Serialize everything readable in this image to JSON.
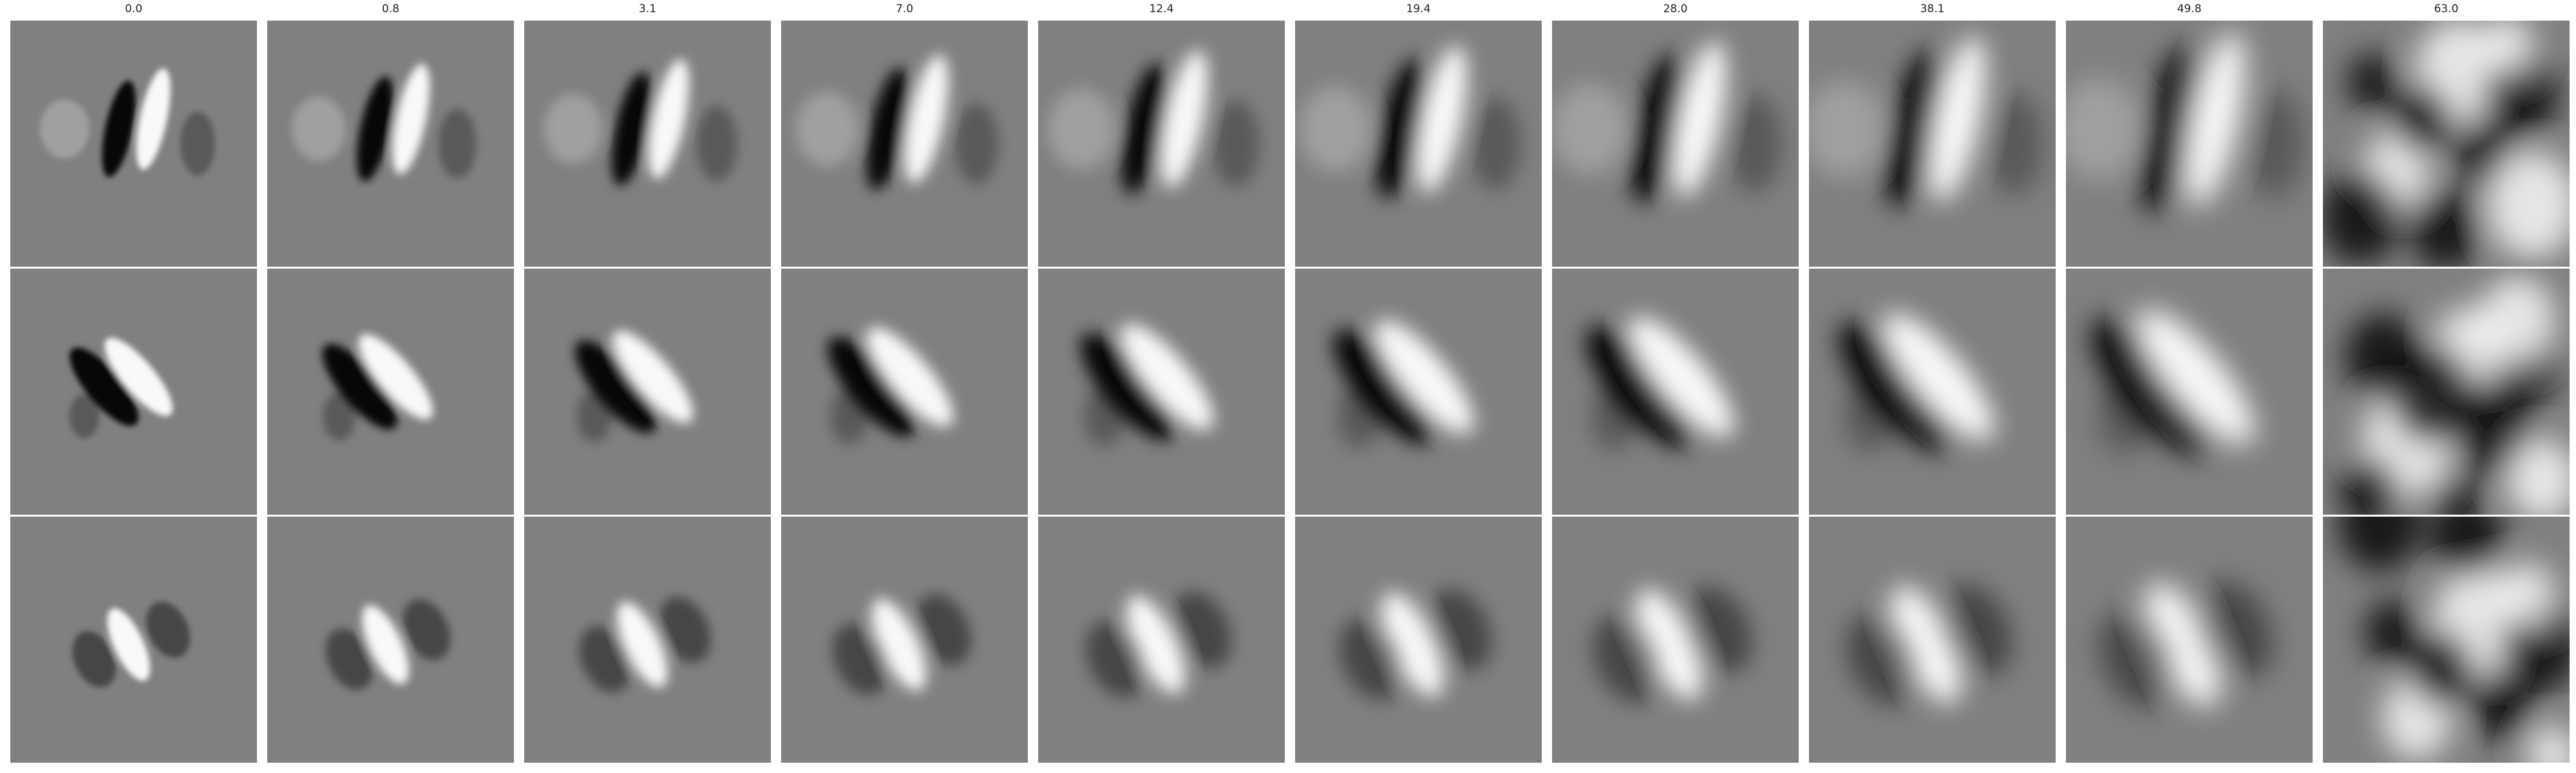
{
  "figure": {
    "column_titles": [
      "0.0",
      "0.8",
      "3.1",
      "7.0",
      "12.4",
      "19.4",
      "28.0",
      "38.1",
      "49.8",
      "63.0"
    ],
    "row_count": 3,
    "colormap": "grayscale",
    "colors": {
      "background": "#ffffff",
      "neutral_gray": "#808080",
      "dark": "#000000",
      "light": "#ffffff"
    }
  }
}
